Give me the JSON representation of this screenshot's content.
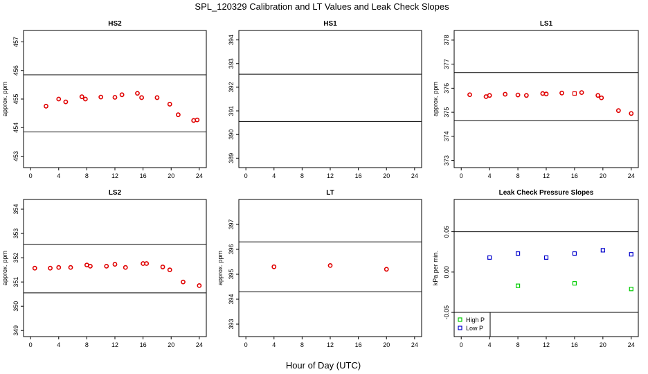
{
  "figure": {
    "title": "SPL_120329  Calibration and LT Values and Leak Check Slopes",
    "xlabel": "Hour of Day (UTC)"
  },
  "chart_data": [
    {
      "type": "scatter",
      "title": "HS2",
      "ylabel": "approx. ppm",
      "xlim": [
        -1,
        25
      ],
      "ylim": [
        452.6,
        457.4
      ],
      "xticks": [
        0,
        4,
        8,
        12,
        16,
        20,
        24
      ],
      "yticks": [
        453,
        454,
        455,
        456,
        457
      ],
      "hlines": [
        453.85,
        455.85
      ],
      "series": [
        {
          "color": "#e00000",
          "points": [
            [
              2.2,
              454.75
            ],
            [
              4,
              455.0
            ],
            [
              5,
              454.9
            ],
            [
              7.3,
              455.08
            ],
            [
              7.8,
              455.0
            ],
            [
              10,
              455.07
            ],
            [
              12,
              455.06
            ],
            [
              13,
              455.15
            ],
            [
              15.2,
              455.2
            ],
            [
              15.8,
              455.05
            ],
            [
              18,
              455.05
            ],
            [
              19.8,
              454.82
            ],
            [
              21,
              454.45
            ],
            [
              23.2,
              454.25
            ],
            [
              23.7,
              454.27
            ]
          ]
        }
      ]
    },
    {
      "type": "scatter",
      "title": "HS1",
      "ylabel": "",
      "xlim": [
        -1,
        25
      ],
      "ylim": [
        388.6,
        394.4
      ],
      "xticks": [
        0,
        4,
        8,
        12,
        16,
        20,
        24
      ],
      "yticks": [
        389,
        390,
        391,
        392,
        393,
        394
      ],
      "hlines": [
        390.55,
        392.55
      ],
      "series": []
    },
    {
      "type": "scatter",
      "title": "LS1",
      "ylabel": "approx. ppm",
      "xlim": [
        -1,
        25
      ],
      "ylim": [
        372.7,
        378.4
      ],
      "xticks": [
        0,
        4,
        8,
        12,
        16,
        20,
        24
      ],
      "yticks": [
        373,
        374,
        375,
        376,
        377,
        378
      ],
      "hlines": [
        374.65,
        376.65
      ],
      "series": [
        {
          "color": "#e00000",
          "points": [
            [
              1.2,
              375.73
            ],
            [
              3.5,
              375.65
            ],
            [
              4,
              375.7
            ],
            [
              6.2,
              375.75
            ],
            [
              8,
              375.72
            ],
            [
              9.2,
              375.7
            ],
            [
              11.5,
              375.78
            ],
            [
              12,
              375.76
            ],
            [
              14.2,
              375.8
            ],
            [
              17,
              375.82
            ],
            [
              19.3,
              375.7
            ],
            [
              19.8,
              375.6
            ],
            [
              22.2,
              375.07
            ],
            [
              24,
              374.95
            ]
          ]
        },
        {
          "color": "#e00000",
          "marker": "square",
          "points": [
            [
              16,
              375.78
            ]
          ]
        }
      ]
    },
    {
      "type": "scatter",
      "title": "LS2",
      "ylabel": "approx. ppm",
      "xlim": [
        -1,
        25
      ],
      "ylim": [
        348.75,
        354.4
      ],
      "xticks": [
        0,
        4,
        8,
        12,
        16,
        20,
        24
      ],
      "yticks": [
        349,
        350,
        351,
        352,
        353,
        354
      ],
      "hlines": [
        350.55,
        352.55
      ],
      "series": [
        {
          "color": "#e00000",
          "points": [
            [
              0.6,
              351.57
            ],
            [
              2.8,
              351.57
            ],
            [
              4,
              351.6
            ],
            [
              5.7,
              351.6
            ],
            [
              8,
              351.7
            ],
            [
              8.5,
              351.65
            ],
            [
              10.8,
              351.65
            ],
            [
              12,
              351.73
            ],
            [
              13.5,
              351.6
            ],
            [
              16,
              351.76
            ],
            [
              16.5,
              351.76
            ],
            [
              18.8,
              351.62
            ],
            [
              19.8,
              351.5
            ],
            [
              21.7,
              351.0
            ],
            [
              24,
              350.85
            ]
          ]
        }
      ]
    },
    {
      "type": "scatter",
      "title": "LT",
      "ylabel": "approx. ppm",
      "xlim": [
        -1,
        25
      ],
      "ylim": [
        392.5,
        398.0
      ],
      "xticks": [
        0,
        4,
        8,
        12,
        16,
        20,
        24
      ],
      "yticks": [
        393,
        394,
        395,
        396,
        397
      ],
      "hlines": [
        394.3,
        396.3
      ],
      "series": [
        {
          "color": "#e00000",
          "points": [
            [
              4,
              395.3
            ],
            [
              12,
              395.35
            ],
            [
              20,
              395.2
            ]
          ]
        }
      ]
    },
    {
      "type": "scatter",
      "title": "Leak Check Pressure Slopes",
      "ylabel": "kPa per min.",
      "xlim": [
        -1,
        25
      ],
      "ylim": [
        -0.08,
        0.09
      ],
      "xticks": [
        0,
        4,
        8,
        12,
        16,
        20,
        24
      ],
      "yticks": [
        -0.05,
        0.0,
        0.05
      ],
      "ytick_labels": [
        "-0.05",
        "0.00",
        "0.05"
      ],
      "hlines": [
        -0.05,
        0.05
      ],
      "legend": {
        "position": "bottom-left"
      },
      "series": [
        {
          "name": "High P",
          "color": "#00cc00",
          "marker": "square",
          "points": [
            [
              8,
              -0.017
            ],
            [
              16,
              -0.014
            ],
            [
              24,
              -0.021
            ]
          ]
        },
        {
          "name": "Low P",
          "color": "#0000cc",
          "marker": "square",
          "points": [
            [
              4,
              0.018
            ],
            [
              8,
              0.023
            ],
            [
              12,
              0.018
            ],
            [
              16,
              0.023
            ],
            [
              20,
              0.027
            ],
            [
              24,
              0.022
            ]
          ]
        }
      ]
    }
  ]
}
